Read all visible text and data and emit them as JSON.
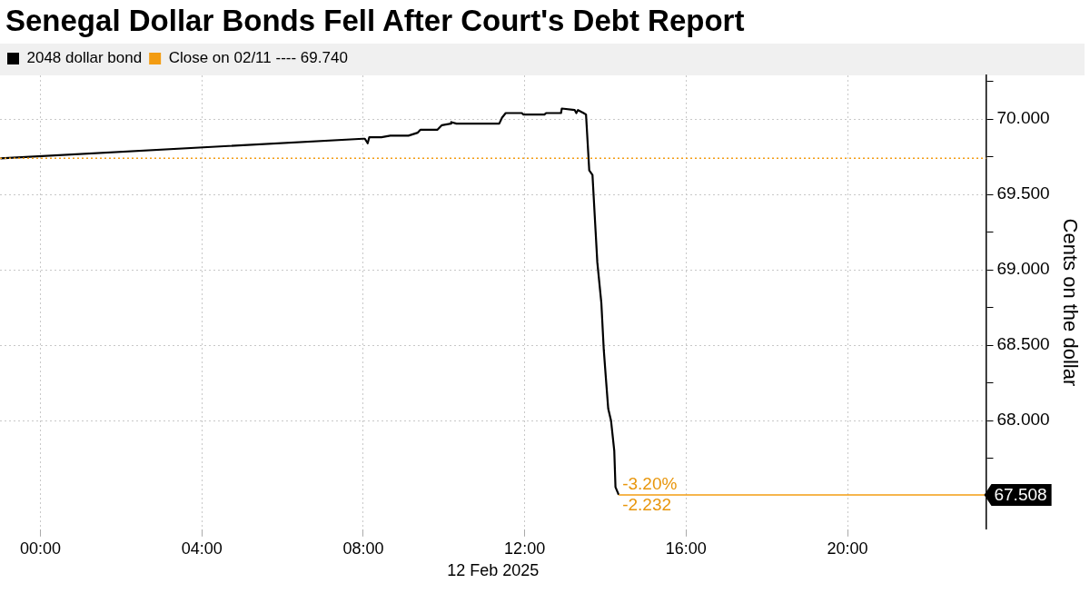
{
  "chart_data": {
    "type": "line",
    "title": "Senegal Dollar Bonds Fell After Court's Debt Report",
    "xlabel": "12 Feb 2025",
    "ylabel": "Cents on the dollar",
    "x": [
      -0.99,
      8.0,
      8.04,
      8.11,
      8.15,
      8.45,
      8.67,
      9.12,
      9.35,
      9.42,
      9.84,
      9.95,
      10.17,
      10.18,
      10.31,
      10.85,
      11.37,
      11.44,
      11.53,
      11.93,
      11.97,
      12.49,
      12.53,
      12.9,
      12.92,
      13.24,
      13.28,
      13.32,
      13.46,
      13.52,
      13.6,
      13.68,
      13.8,
      13.9,
      13.96,
      14.01,
      14.07,
      14.14,
      14.22,
      14.25,
      14.33
    ],
    "series": [
      {
        "name": "2048 dollar bond",
        "color": "#000000",
        "values": [
          69.74,
          69.87,
          69.87,
          69.84,
          69.88,
          69.88,
          69.89,
          69.89,
          69.91,
          69.93,
          69.93,
          69.96,
          69.97,
          69.98,
          69.97,
          69.97,
          69.97,
          70.01,
          70.04,
          70.04,
          70.03,
          70.03,
          70.04,
          70.04,
          70.07,
          70.06,
          70.04,
          70.06,
          70.04,
          70.03,
          69.66,
          69.63,
          69.05,
          68.78,
          68.47,
          68.29,
          68.08,
          68.0,
          67.8,
          67.56,
          67.508
        ]
      }
    ],
    "xlim": [
      -1,
      23.43
    ],
    "xticks": [
      {
        "value": 0,
        "label": "00:00"
      },
      {
        "value": 4,
        "label": "04:00"
      },
      {
        "value": 8,
        "label": "08:00"
      },
      {
        "value": 12,
        "label": "12:00"
      },
      {
        "value": 16,
        "label": "16:00"
      },
      {
        "value": 20,
        "label": "20:00"
      }
    ],
    "ylim": [
      67.28,
      70.29
    ],
    "yticks": [
      {
        "value": 67.5,
        "label": null
      },
      {
        "value": 67.75,
        "label": null
      },
      {
        "value": 68,
        "label": "68.000"
      },
      {
        "value": 68.25,
        "label": null
      },
      {
        "value": 68.5,
        "label": "68.500"
      },
      {
        "value": 68.75,
        "label": null
      },
      {
        "value": 69,
        "label": "69.000"
      },
      {
        "value": 69.25,
        "label": null
      },
      {
        "value": 69.5,
        "label": "69.500"
      },
      {
        "value": 69.75,
        "label": null
      },
      {
        "value": 70,
        "label": "70.000"
      },
      {
        "value": 70.25,
        "label": null
      }
    ],
    "ref_lines": [
      {
        "axis": "y",
        "value": 69.74,
        "label": "Close on 02/11 ---- 69.740",
        "color": "#f39c12",
        "line_style": "dotted"
      },
      {
        "axis": "y",
        "value": 67.508,
        "label": "67.508",
        "color": "#f39c12",
        "line_style": "solid"
      }
    ],
    "annotations": [
      {
        "text": "-3.20%",
        "x": 14.33,
        "y": 67.508
      },
      {
        "text": "-2.232",
        "x": 14.33,
        "y": 67.508
      }
    ],
    "grid": true,
    "legend": "top left",
    "marker": "none",
    "line_style": "solid"
  }
}
